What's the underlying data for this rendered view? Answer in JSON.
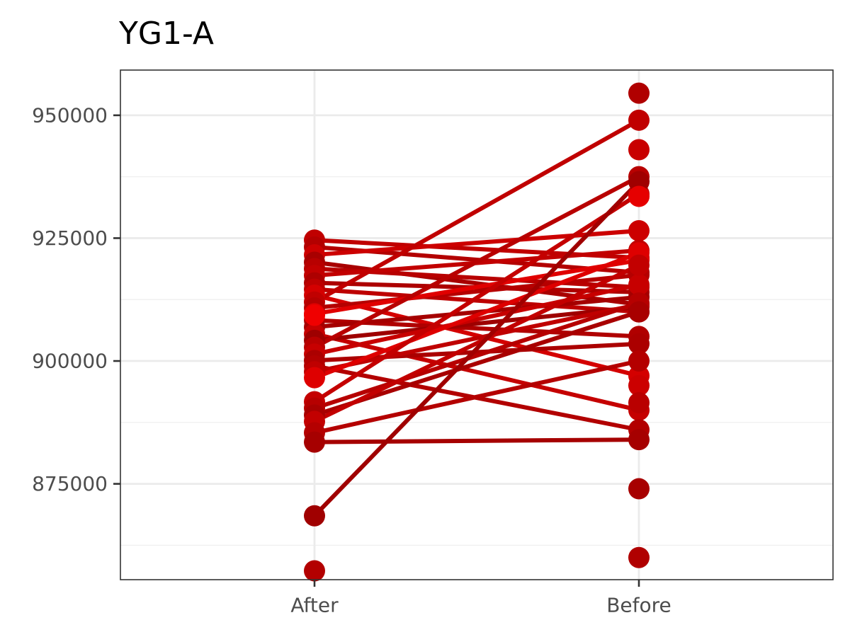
{
  "chart_data": {
    "type": "line",
    "title": "YG1-A",
    "xlabel": "",
    "ylabel": "",
    "categories": [
      "After",
      "Before"
    ],
    "ylim": [
      855500,
      959200
    ],
    "yticks": [
      875000,
      900000,
      925000,
      950000
    ],
    "grid": true,
    "legend": "none",
    "pairs": [
      {
        "after": 924600,
        "before": 921000,
        "color": "#c00000"
      },
      {
        "after": 923200,
        "before": 918000,
        "color": "#b30000"
      },
      {
        "after": 921600,
        "before": 926500,
        "color": "#cc0000"
      },
      {
        "after": 920100,
        "before": 911500,
        "color": "#a80000"
      },
      {
        "after": 918800,
        "before": 915000,
        "color": "#b80000"
      },
      {
        "after": 917400,
        "before": 922500,
        "color": "#c20000"
      },
      {
        "after": 915900,
        "before": 914000,
        "color": "#ad0000"
      },
      {
        "after": 914600,
        "before": 910000,
        "color": "#bd0000"
      },
      {
        "after": 913400,
        "before": 897000,
        "color": "#d40000"
      },
      {
        "after": 912000,
        "before": 949000,
        "color": "#c00000"
      },
      {
        "after": 910800,
        "before": 917500,
        "color": "#b50000"
      },
      {
        "after": 909600,
        "before": 920500,
        "color": "#e00000"
      },
      {
        "after": 908300,
        "before": 905000,
        "color": "#b00000"
      },
      {
        "after": 906900,
        "before": 913000,
        "color": "#a50000"
      },
      {
        "after": 905500,
        "before": 890000,
        "color": "#c50000"
      },
      {
        "after": 904200,
        "before": 911000,
        "color": "#9e0000"
      },
      {
        "after": 902800,
        "before": 937500,
        "color": "#b80000"
      },
      {
        "after": 901400,
        "before": 915500,
        "color": "#c70000"
      },
      {
        "after": 900100,
        "before": 903500,
        "color": "#ab0000"
      },
      {
        "after": 899000,
        "before": 886000,
        "color": "#b20000"
      },
      {
        "after": 897800,
        "before": 911500,
        "color": "#bf0000"
      },
      {
        "after": 896600,
        "before": 922000,
        "color": "#de0000"
      },
      {
        "after": 891700,
        "before": 934000,
        "color": "#c40000"
      },
      {
        "after": 890400,
        "before": 911800,
        "color": "#b60000"
      },
      {
        "after": 889000,
        "before": 910000,
        "color": "#a80000"
      },
      {
        "after": 887700,
        "before": 919500,
        "color": "#c20000"
      },
      {
        "after": 885400,
        "before": 900000,
        "color": "#b40000"
      },
      {
        "after": 883500,
        "before": 884000,
        "color": "#a60000"
      },
      {
        "after": 868500,
        "before": 936500,
        "color": "#a00000"
      }
    ],
    "unpaired_before": [
      {
        "value": 954500,
        "color": "#b00000"
      },
      {
        "value": 943000,
        "color": "#c80000"
      },
      {
        "value": 933500,
        "color": "#e60000"
      },
      {
        "value": 895000,
        "color": "#cc0000"
      },
      {
        "value": 891500,
        "color": "#b90000"
      },
      {
        "value": 874000,
        "color": "#a70000"
      },
      {
        "value": 860000,
        "color": "#b00000"
      }
    ],
    "unpaired_after": [
      {
        "value": 857300,
        "color": "#b30000"
      },
      {
        "value": 909300,
        "color": "#f00000"
      }
    ]
  }
}
